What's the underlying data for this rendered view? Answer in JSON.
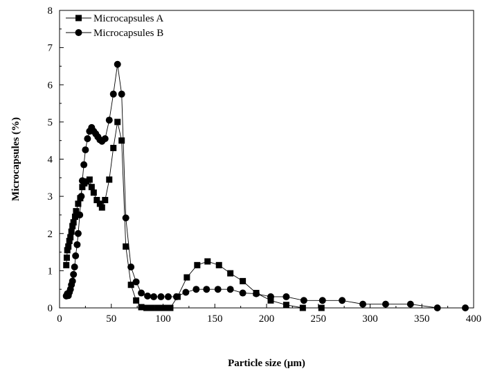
{
  "chart_data": {
    "type": "line",
    "title": "",
    "xlabel": "Particle size (μm)",
    "ylabel": "Microcapsules (%)",
    "xlim": [
      0,
      400
    ],
    "ylim": [
      0,
      8
    ],
    "xticks": [
      0,
      50,
      100,
      150,
      200,
      250,
      300,
      350,
      400
    ],
    "yticks": [
      0,
      1,
      2,
      3,
      4,
      5,
      6,
      7,
      8
    ],
    "grid": false,
    "legend_position": "top-left",
    "series": [
      {
        "name": "Microcapsules A",
        "marker": "square",
        "color": "#000000",
        "points": [
          [
            6.5,
            1.15
          ],
          [
            7,
            1.35
          ],
          [
            7.5,
            1.55
          ],
          [
            8.5,
            1.65
          ],
          [
            9.5,
            1.8
          ],
          [
            10.5,
            1.9
          ],
          [
            11.5,
            2.05
          ],
          [
            12.5,
            2.2
          ],
          [
            13.5,
            2.3
          ],
          [
            15,
            2.45
          ],
          [
            16,
            2.6
          ],
          [
            18,
            2.8
          ],
          [
            20,
            2.95
          ],
          [
            22,
            3.25
          ],
          [
            24,
            3.35
          ],
          [
            26,
            3.4
          ],
          [
            29,
            3.45
          ],
          [
            31,
            3.25
          ],
          [
            33,
            3.1
          ],
          [
            36,
            2.9
          ],
          [
            39,
            2.8
          ],
          [
            41,
            2.7
          ],
          [
            44,
            2.9
          ],
          [
            48,
            3.45
          ],
          [
            52,
            4.3
          ],
          [
            56,
            5.0
          ],
          [
            60,
            4.5
          ],
          [
            64,
            1.65
          ],
          [
            69,
            0.62
          ],
          [
            74,
            0.2
          ],
          [
            79,
            0.02
          ],
          [
            84,
            0.0
          ],
          [
            89,
            0.0
          ],
          [
            95,
            0.0
          ],
          [
            101,
            0.0
          ],
          [
            107,
            0.0
          ],
          [
            114,
            0.3
          ],
          [
            123,
            0.82
          ],
          [
            133,
            1.15
          ],
          [
            143,
            1.25
          ],
          [
            154,
            1.15
          ],
          [
            165,
            0.93
          ],
          [
            177,
            0.72
          ],
          [
            190,
            0.4
          ],
          [
            204,
            0.2
          ],
          [
            219,
            0.08
          ],
          [
            235,
            0.0
          ],
          [
            253,
            0.0
          ]
        ]
      },
      {
        "name": "Microcapsules B",
        "marker": "circle",
        "color": "#000000",
        "points": [
          [
            6.5,
            0.32
          ],
          [
            7.5,
            0.38
          ],
          [
            8.5,
            0.33
          ],
          [
            9.5,
            0.42
          ],
          [
            10.5,
            0.5
          ],
          [
            11.5,
            0.62
          ],
          [
            12.5,
            0.72
          ],
          [
            13.5,
            0.9
          ],
          [
            14.5,
            1.1
          ],
          [
            15.5,
            1.4
          ],
          [
            17,
            1.7
          ],
          [
            18,
            2.0
          ],
          [
            19.5,
            2.5
          ],
          [
            21,
            3.0
          ],
          [
            22,
            3.42
          ],
          [
            23.5,
            3.85
          ],
          [
            25,
            4.25
          ],
          [
            27,
            4.55
          ],
          [
            29,
            4.75
          ],
          [
            31,
            4.85
          ],
          [
            33,
            4.75
          ],
          [
            35,
            4.68
          ],
          [
            37,
            4.6
          ],
          [
            39,
            4.52
          ],
          [
            41,
            4.48
          ],
          [
            44,
            4.55
          ],
          [
            48,
            5.05
          ],
          [
            52,
            5.75
          ],
          [
            56,
            6.55
          ],
          [
            60,
            5.75
          ],
          [
            64,
            2.42
          ],
          [
            69,
            1.1
          ],
          [
            74,
            0.7
          ],
          [
            79,
            0.4
          ],
          [
            85,
            0.32
          ],
          [
            91,
            0.3
          ],
          [
            98,
            0.3
          ],
          [
            105,
            0.3
          ],
          [
            113,
            0.3
          ],
          [
            122,
            0.42
          ],
          [
            132,
            0.5
          ],
          [
            142,
            0.5
          ],
          [
            153,
            0.5
          ],
          [
            165,
            0.5
          ],
          [
            177,
            0.4
          ],
          [
            190,
            0.38
          ],
          [
            204,
            0.3
          ],
          [
            219,
            0.3
          ],
          [
            236,
            0.2
          ],
          [
            254,
            0.2
          ],
          [
            273,
            0.2
          ],
          [
            293,
            0.1
          ],
          [
            315,
            0.1
          ],
          [
            339,
            0.1
          ],
          [
            365,
            0.0
          ],
          [
            392,
            0.0
          ]
        ]
      }
    ]
  }
}
